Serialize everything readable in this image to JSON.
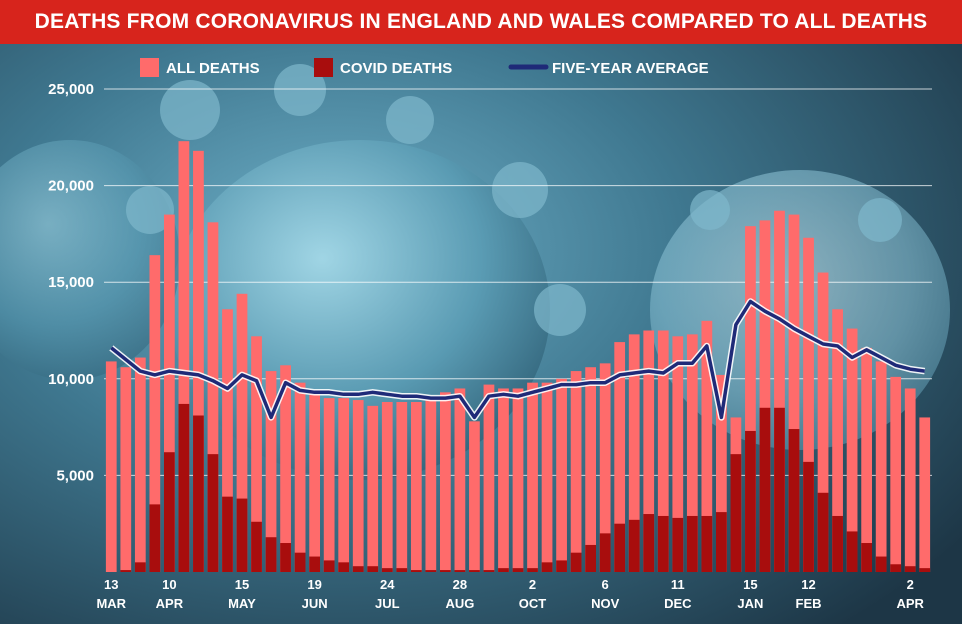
{
  "colors": {
    "all_deaths": "#ff6b6b",
    "covid_deaths": "#a80d0d",
    "average": "#1f2a78",
    "title_bg": "#d7241c"
  },
  "chart_data": {
    "type": "bar",
    "title": "DEATHS FROM CORONAVIRUS IN ENGLAND AND WALES COMPARED TO ALL DEATHS",
    "ylim": [
      0,
      25000
    ],
    "y_ticks": [
      "25,000",
      "20,000",
      "15,000",
      "10,000",
      "5,000"
    ],
    "x_tick_labels": [
      {
        "idx": 0,
        "day": "13",
        "month": "MAR"
      },
      {
        "idx": 4,
        "day": "10",
        "month": "APR"
      },
      {
        "idx": 9,
        "day": "15",
        "month": "MAY"
      },
      {
        "idx": 14,
        "day": "19",
        "month": "JUN"
      },
      {
        "idx": 19,
        "day": "24",
        "month": "JUL"
      },
      {
        "idx": 24,
        "day": "28",
        "month": "AUG"
      },
      {
        "idx": 29,
        "day": "2",
        "month": "OCT"
      },
      {
        "idx": 34,
        "day": "6",
        "month": "NOV"
      },
      {
        "idx": 39,
        "day": "11",
        "month": "DEC"
      },
      {
        "idx": 44,
        "day": "15",
        "month": "JAN"
      },
      {
        "idx": 48,
        "day": "12",
        "month": "FEB"
      },
      {
        "idx": 55,
        "day": "2",
        "month": "APR"
      }
    ],
    "series": [
      {
        "name": "ALL DEATHS",
        "values": [
          10900,
          10600,
          11100,
          16400,
          18500,
          22300,
          21800,
          18100,
          13600,
          14400,
          12200,
          10400,
          10700,
          9800,
          9300,
          9000,
          9000,
          8900,
          8600,
          8800,
          8800,
          8800,
          9000,
          9300,
          9500,
          7800,
          9700,
          9500,
          9500,
          9800,
          9800,
          10000,
          10400,
          10600,
          10800,
          11900,
          12300,
          12500,
          12500,
          12200,
          12300,
          13000,
          10200,
          8000,
          17900,
          18200,
          18700,
          18500,
          17300,
          15500,
          13600,
          12600,
          11600,
          10900,
          10100,
          9500,
          8000
        ]
      },
      {
        "name": "COVID DEATHS",
        "values": [
          0,
          100,
          500,
          3500,
          6200,
          8700,
          8100,
          6100,
          3900,
          3800,
          2600,
          1800,
          1500,
          1000,
          800,
          600,
          500,
          300,
          300,
          200,
          200,
          100,
          100,
          100,
          100,
          100,
          100,
          200,
          200,
          200,
          500,
          600,
          1000,
          1400,
          2000,
          2500,
          2700,
          3000,
          2900,
          2800,
          2900,
          2900,
          3100,
          6100,
          7300,
          8500,
          8500,
          7400,
          5700,
          4100,
          2900,
          2100,
          1500,
          800,
          400,
          300,
          200
        ]
      },
      {
        "name": "FIVE-YEAR AVERAGE",
        "values": [
          11600,
          11000,
          10400,
          10200,
          10400,
          10300,
          10200,
          9900,
          9500,
          10200,
          9900,
          8000,
          9800,
          9400,
          9300,
          9300,
          9200,
          9200,
          9300,
          9200,
          9100,
          9100,
          9000,
          9000,
          9100,
          8000,
          9100,
          9200,
          9100,
          9300,
          9500,
          9700,
          9700,
          9800,
          9800,
          10200,
          10300,
          10400,
          10300,
          10800,
          10800,
          11700,
          8000,
          12800,
          14000,
          13500,
          13100,
          12600,
          12200,
          11800,
          11700,
          11100,
          11500,
          11100,
          10700,
          10500,
          10400
        ]
      }
    ],
    "legend": [
      "ALL DEATHS",
      "COVID DEATHS",
      "FIVE-YEAR AVERAGE"
    ]
  }
}
